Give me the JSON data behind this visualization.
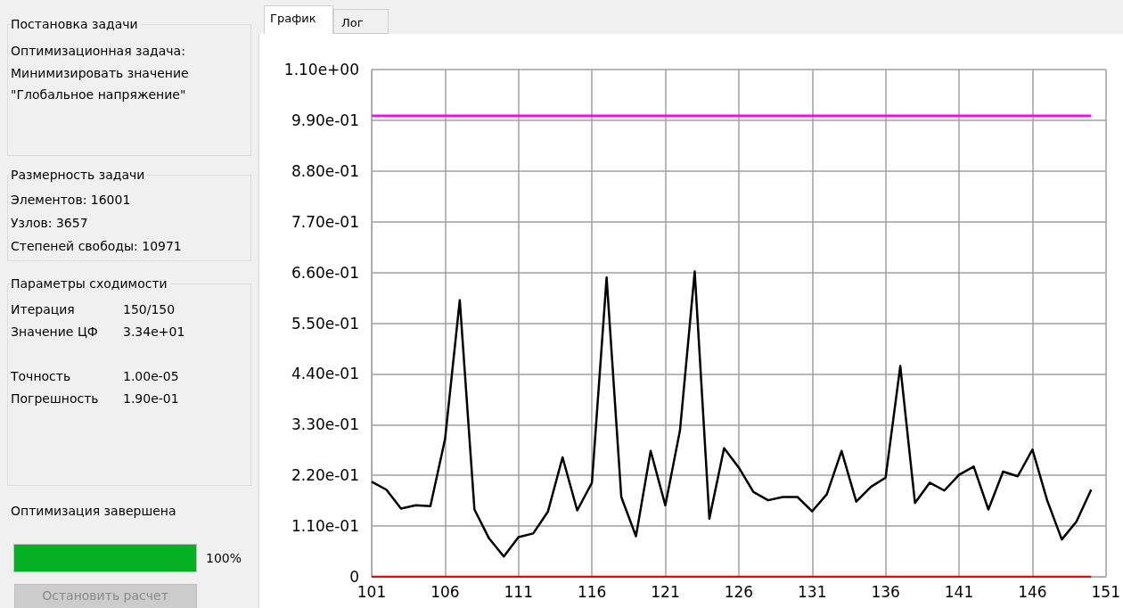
{
  "chart_data": {
    "type": "line",
    "x": [
      101,
      102,
      103,
      104,
      105,
      106,
      107,
      108,
      109,
      110,
      111,
      112,
      113,
      114,
      115,
      116,
      117,
      118,
      119,
      120,
      121,
      122,
      123,
      124,
      125,
      126,
      127,
      128,
      129,
      130,
      131,
      132,
      133,
      134,
      135,
      136,
      137,
      138,
      139,
      140,
      141,
      142,
      143,
      144,
      145,
      146,
      147,
      148,
      149,
      150
    ],
    "series": [
      {
        "color": "#000000",
        "values": [
          0.206,
          0.189,
          0.148,
          0.155,
          0.153,
          0.299,
          0.6,
          0.146,
          0.083,
          0.044,
          0.086,
          0.094,
          0.141,
          0.259,
          0.144,
          0.204,
          0.649,
          0.173,
          0.088,
          0.273,
          0.155,
          0.318,
          0.662,
          0.126,
          0.279,
          0.237,
          0.184,
          0.166,
          0.173,
          0.173,
          0.142,
          0.179,
          0.273,
          0.163,
          0.195,
          0.215,
          0.457,
          0.16,
          0.204,
          0.187,
          0.221,
          0.239,
          0.146,
          0.228,
          0.218,
          0.276,
          0.166,
          0.081,
          0.12,
          0.189
        ]
      },
      {
        "color": "#ff00ff",
        "values": [
          1,
          1,
          1,
          1,
          1,
          1,
          1,
          1,
          1,
          1,
          1,
          1,
          1,
          1,
          1,
          1,
          1,
          1,
          1,
          1,
          1,
          1,
          1,
          1,
          1,
          1,
          1,
          1,
          1,
          1,
          1,
          1,
          1,
          1,
          1,
          1,
          1,
          1,
          1,
          1,
          1,
          1,
          1,
          1,
          1,
          1,
          1,
          1,
          1,
          1
        ]
      },
      {
        "color": "#ff0000",
        "values": [
          0,
          0,
          0,
          0,
          0,
          0,
          0,
          0,
          0,
          0,
          0,
          0,
          0,
          0,
          0,
          0,
          0,
          0,
          0,
          0,
          0,
          0,
          0,
          0,
          0,
          0,
          0,
          0,
          0,
          0,
          0,
          0,
          0,
          0,
          0,
          0,
          0,
          0,
          0,
          0,
          0,
          0,
          0,
          0,
          0,
          0,
          0,
          0,
          0,
          0
        ]
      }
    ],
    "xlim": [
      101,
      151
    ],
    "xticks": [
      101,
      106,
      111,
      116,
      121,
      126,
      131,
      136,
      141,
      146,
      151
    ],
    "ylim": [
      0,
      1.1
    ],
    "yticks": [
      0,
      {
        "value": 0.11,
        "label": "1.10e-01"
      },
      {
        "value": 0.22,
        "label": "2.20e-01"
      },
      {
        "value": 0.33,
        "label": "3.30e-01"
      },
      {
        "value": 0.44,
        "label": "4.40e-01"
      },
      {
        "value": 0.55,
        "label": "5.50e-01"
      },
      {
        "value": 0.66,
        "label": "6.60e-01"
      },
      {
        "value": 0.77,
        "label": "7.70e-01"
      },
      {
        "value": 0.88,
        "label": "8.80e-01"
      },
      {
        "value": 0.99,
        "label": "9.90e-01"
      },
      {
        "value": 1.1,
        "label": "1.10e+00"
      }
    ],
    "grid": true,
    "marker": "none",
    "annotations": [
      "Постановка задачи",
      "Оптимизационная задача:",
      "Минимизировать значение",
      "\"Глобальное напряжение\"",
      "Размерность задачи",
      "Элементов: 16001",
      "Узлов: 3657",
      "Степеней свободы: 10971",
      "Параметры сходимости",
      "Итерация",
      "150/150",
      "Значение ЦФ",
      "3.34e+01",
      "Точность",
      "1.00e-05",
      "Погрешность",
      "1.90e-01",
      "Оптимизация завершена",
      "100%",
      "Остановить расчет",
      "График",
      "Лог"
    ]
  }
}
